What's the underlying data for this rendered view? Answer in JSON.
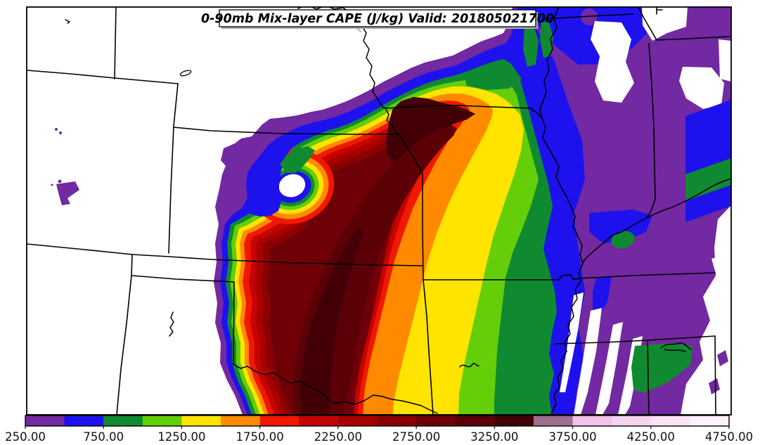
{
  "title_box": {
    "text": "0-90mb Mix-layer CAPE (J/kg) Valid: 201805021700"
  },
  "colorbar": {
    "orientation": "horizontal",
    "tick_labels": [
      "250.00",
      "750.00",
      "1250.00",
      "1750.00",
      "2250.00",
      "2750.00",
      "3250.00",
      "3750.00",
      "4250.00",
      "4750.00"
    ],
    "levels": [
      250,
      500,
      750,
      1000,
      1250,
      1500,
      1750,
      2000,
      2250,
      2500,
      2750,
      3000,
      3250,
      3500,
      3750,
      4000,
      4250,
      4500,
      4750
    ],
    "colors": [
      "#7229A2",
      "#1D12EE",
      "#108A30",
      "#64CE08",
      "#FFE400",
      "#FF8A00",
      "#F01800",
      "#C40400",
      "#A80000",
      "#8B0000",
      "#700008",
      "#5C0008",
      "#420006",
      "#9C6F8F",
      "#F2C2E8",
      "#F5D4F0",
      "#F9E4F6",
      "#FDF2FB"
    ]
  },
  "chart_data": {
    "type": "heatmap",
    "title": "0-90mb Mix-layer CAPE (J/kg) Valid: 201805021700",
    "variable": "0-90mb Mix-layer CAPE",
    "units": "J/kg",
    "valid_time": "201805021700",
    "legend_position": "bottom",
    "value_range": [
      250,
      4750
    ],
    "contour_interval": 250,
    "contour_levels": [
      250,
      500,
      750,
      1000,
      1250,
      1500,
      1750,
      2000,
      2250,
      2500,
      2750,
      3000,
      3250,
      3500,
      3750,
      4000,
      4250,
      4500,
      4750
    ],
    "palette_hex": [
      "#7229A2",
      "#1D12EE",
      "#108A30",
      "#64CE08",
      "#FFE400",
      "#FF8A00",
      "#F01800",
      "#C40400",
      "#A80000",
      "#8B0000",
      "#700008",
      "#5C0008",
      "#420006",
      "#9C6F8F",
      "#F2C2E8",
      "#F5D4F0",
      "#F9E4F6",
      "#FDF2FB"
    ],
    "colorbar_tick_labels": [
      "250.00",
      "750.00",
      "1250.00",
      "1750.00",
      "2250.00",
      "2750.00",
      "3250.00",
      "3750.00",
      "4250.00",
      "4750.00"
    ],
    "map_description": "Filled CAPE contours over central US state borders; maximum filled band 3250-3500 J/kg in a SW-NE corridor, tight west gradient, broad rainbow bands sweeping east, purple/blue low-CAPE bands with white gaps to the northeast and southeast, small dry slot hole ringed by rainbow bands near the contour core's northwest flank"
  }
}
